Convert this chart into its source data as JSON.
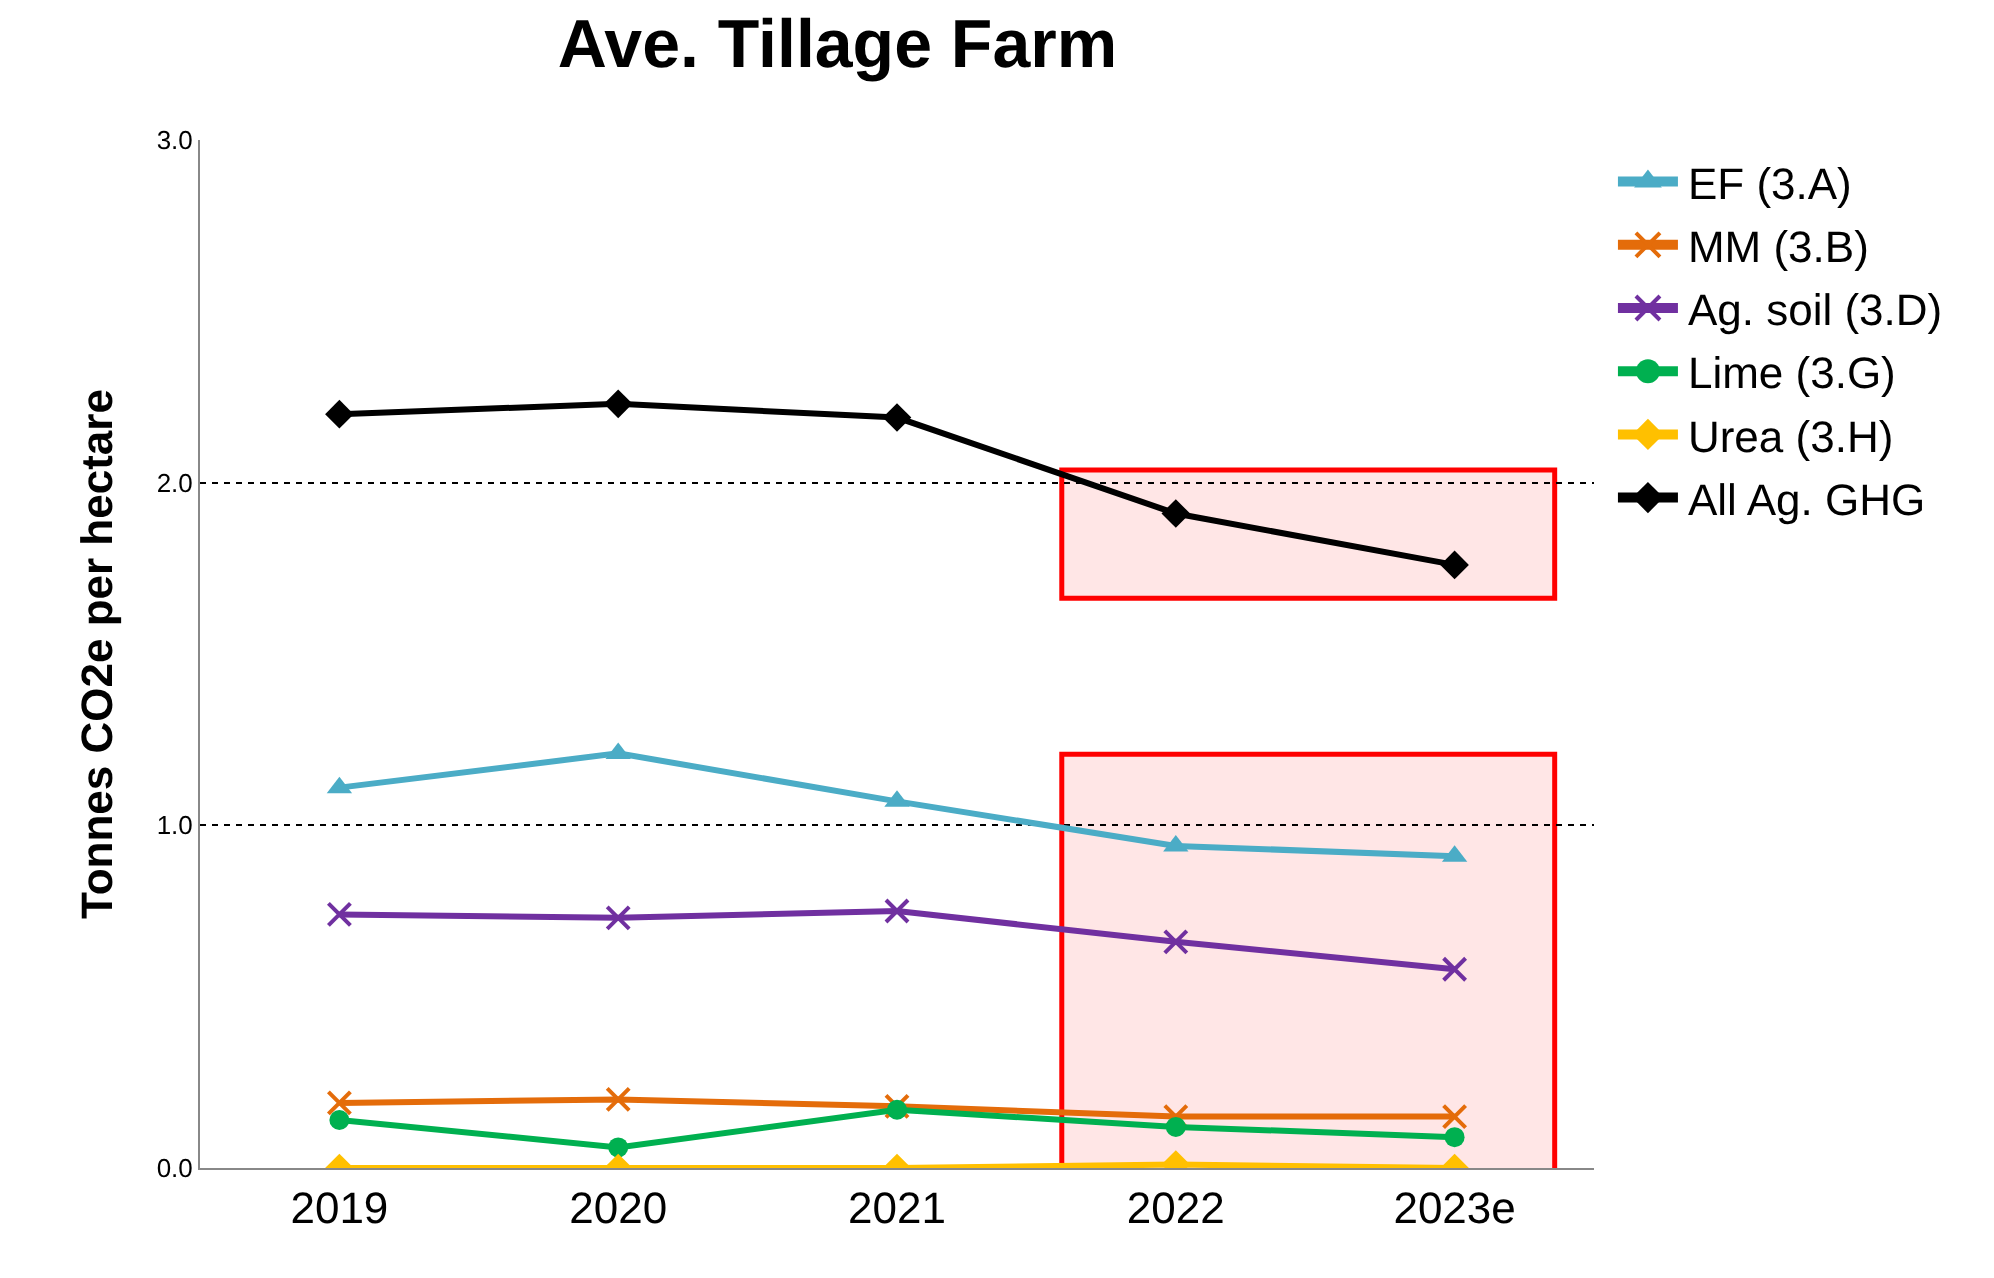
{
  "chart_data": {
    "type": "line",
    "title": "Ave. Tillage Farm",
    "ylabel": "Tonnes CO2e per hectare",
    "categories": [
      "2019",
      "2020",
      "2021",
      "2022",
      "2023e"
    ],
    "series": [
      {
        "name": "EF (3.A)",
        "color": "#4bacc6",
        "marker": "triangle",
        "values": [
          1.11,
          1.21,
          1.07,
          0.94,
          0.91
        ]
      },
      {
        "name": "MM (3.B)",
        "color": "#e46c0a",
        "marker": "cross",
        "values": [
          0.19,
          0.2,
          0.18,
          0.15,
          0.15
        ]
      },
      {
        "name": "Ag. soil (3.D)",
        "color": "#7030a0",
        "marker": "cross",
        "values": [
          0.74,
          0.73,
          0.75,
          0.66,
          0.58
        ]
      },
      {
        "name": "Lime (3.G)",
        "color": "#00b050",
        "marker": "circle",
        "values": [
          0.14,
          0.06,
          0.17,
          0.12,
          0.09
        ]
      },
      {
        "name": "Urea (3.H)",
        "color": "#ffc000",
        "marker": "diamond",
        "values": [
          0.0,
          0.0,
          0.0,
          0.01,
          0.0
        ]
      },
      {
        "name": "All Ag. GHG",
        "color": "#000000",
        "marker": "diamond",
        "values": [
          2.2,
          2.23,
          2.19,
          1.91,
          1.76
        ]
      }
    ],
    "ylim": [
      0,
      3
    ],
    "yticks": [
      {
        "value": 0,
        "label": "0.0"
      },
      {
        "value": 1,
        "label": "1.0"
      },
      {
        "value": 2,
        "label": "2.0"
      },
      {
        "value": 3,
        "label": "3.0"
      }
    ],
    "grid": "y",
    "legend": "right",
    "bands": [
      {
        "axis": "y",
        "from": 1.67,
        "to": 2.03,
        "color": "#ff0000"
      },
      {
        "axis": "y",
        "from": -0.15,
        "to": 1.2,
        "color": "#ff0000"
      }
    ]
  }
}
